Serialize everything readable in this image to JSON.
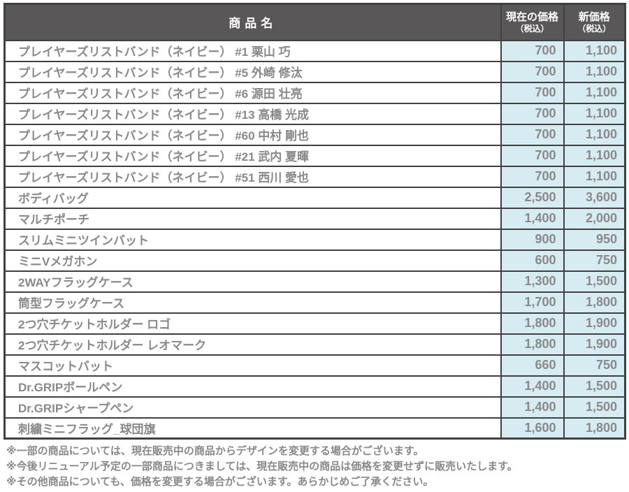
{
  "colors": {
    "header-bg": "#595757",
    "header-text": "#ffffff",
    "new-price-bg": "#ffe100",
    "new-price-text": "#e60012",
    "price-cell-bg": "#d6ebf2",
    "cell-text": "#898989",
    "border": "#404040",
    "page-bg": "#ffffff"
  },
  "table": {
    "headers": {
      "product": "商品名",
      "current_main": "現在の価格",
      "current_sub": "（税込）",
      "new_main": "新価格",
      "new_sub": "（税込）"
    },
    "rows": [
      {
        "name": "プレイヤーズリストバンド（ネイビー） #1 栗山 巧",
        "current": "700",
        "new": "1,100"
      },
      {
        "name": "プレイヤーズリストバンド（ネイビー） #5 外崎 修汰",
        "current": "700",
        "new": "1,100"
      },
      {
        "name": "プレイヤーズリストバンド（ネイビー） #6 源田 壮亮",
        "current": "700",
        "new": "1,100"
      },
      {
        "name": "プレイヤーズリストバンド（ネイビー） #13 高橋 光成",
        "current": "700",
        "new": "1,100"
      },
      {
        "name": "プレイヤーズリストバンド（ネイビー） #60 中村 剛也",
        "current": "700",
        "new": "1,100"
      },
      {
        "name": "プレイヤーズリストバンド（ネイビー） #21 武内 夏暉",
        "current": "700",
        "new": "1,100"
      },
      {
        "name": "プレイヤーズリストバンド（ネイビー） #51 西川 愛也",
        "current": "700",
        "new": "1,100"
      },
      {
        "name": "ボディバッグ",
        "current": "2,500",
        "new": "3,600"
      },
      {
        "name": "マルチポーチ",
        "current": "1,400",
        "new": "2,000"
      },
      {
        "name": "スリムミニツインバット",
        "current": "900",
        "new": "950"
      },
      {
        "name": "ミニVメガホン",
        "current": "600",
        "new": "750"
      },
      {
        "name": "2WAYフラッグケース",
        "current": "1,300",
        "new": "1,500"
      },
      {
        "name": "筒型フラッグケース",
        "current": "1,700",
        "new": "1,800"
      },
      {
        "name": "2つ穴チケットホルダー ロゴ",
        "current": "1,800",
        "new": "1,900"
      },
      {
        "name": "2つ穴チケットホルダー レオマーク",
        "current": "1,800",
        "new": "1,900"
      },
      {
        "name": "マスコットバット",
        "current": "660",
        "new": "750"
      },
      {
        "name": "Dr.GRIPボールペン",
        "current": "1,400",
        "new": "1,500"
      },
      {
        "name": "Dr.GRIPシャープペン",
        "current": "1,400",
        "new": "1,500"
      },
      {
        "name": "刺繍ミニフラッグ_球団旗",
        "current": "1,600",
        "new": "1,800"
      }
    ]
  },
  "notes": [
    "※一部の商品については、現在販売中の商品からデザインを変更する場合がございます。",
    "※今後リニューアル予定の一部商品につきましては、現在販売中の商品は価格を変更せずに販売いたします。",
    "※その他商品についても、価格を変更する場合がございます。あらかじめご了承ください。"
  ]
}
